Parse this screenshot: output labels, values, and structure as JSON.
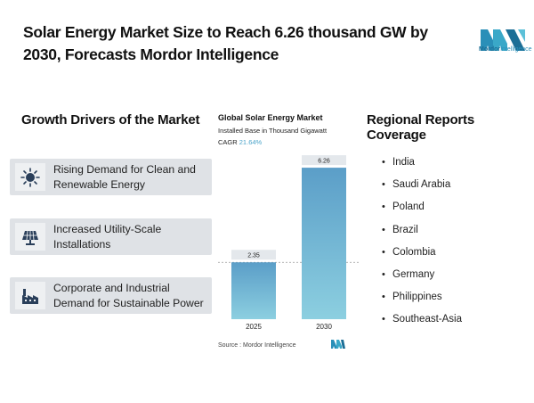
{
  "header": {
    "title": "Solar Energy Market Size to Reach 6.26 thousand GW by 2030, Forecasts Mordor Intelligence",
    "logo_text_bold": "Mordor",
    "logo_text_rest": "Intelligence"
  },
  "drivers": {
    "title": "Growth Drivers of the Market",
    "items": [
      {
        "label": "Rising Demand for Clean and Renewable Energy",
        "icon": "sun-icon"
      },
      {
        "label": "Increased Utility-Scale Installations",
        "icon": "solar-panel-icon"
      },
      {
        "label": "Corporate and Industrial Demand for Sustainable Power",
        "icon": "factory-icon"
      }
    ]
  },
  "chart_data": {
    "type": "bar",
    "title": "Global Solar Energy Market",
    "subtitle": "Installed Base in Thousand Gigawatt",
    "cagr_label": "CAGR",
    "cagr_value": "21.64%",
    "categories": [
      "2025",
      "2030"
    ],
    "values": [
      2.35,
      6.26
    ],
    "value_labels": [
      "2.35",
      "6.26"
    ],
    "ylim": [
      0,
      7
    ],
    "source": "Source : Mordor Intelligence",
    "colors": {
      "top": "#5b9ec8",
      "bottom": "#8ccfe0",
      "label_bg": "#e4e8ec"
    }
  },
  "regions": {
    "title": "Regional Reports Coverage",
    "bullet": "•",
    "items": [
      "India",
      "Saudi Arabia",
      "Poland",
      "Brazil",
      "Colombia",
      "Germany",
      "Philippines",
      "Southeast-Asia"
    ]
  }
}
